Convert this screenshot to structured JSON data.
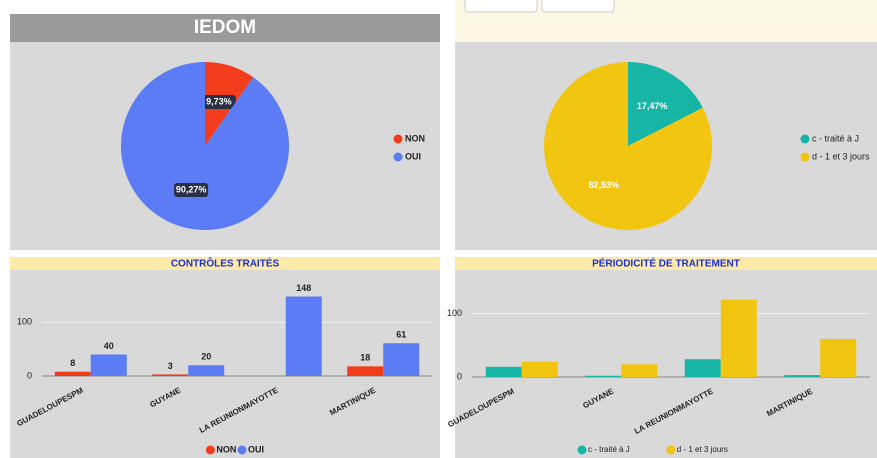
{
  "chart_data": [
    {
      "type": "pie",
      "title": "IEDOM",
      "categories": [
        "NON",
        "OUI"
      ],
      "values": [
        9.73,
        90.27
      ],
      "value_labels": [
        "9,73%",
        "90,27%"
      ],
      "colors": [
        "#f23d1c",
        "#5b7cf5"
      ],
      "legend": "right"
    },
    {
      "type": "pie",
      "categories": [
        "c - traité à J",
        "d - 1 et 3 jours"
      ],
      "values": [
        17.47,
        82.53
      ],
      "value_labels": [
        "17,47%",
        "82,53%"
      ],
      "colors": [
        "#16b5a6",
        "#f2c511"
      ],
      "legend": "right"
    },
    {
      "type": "bar",
      "title": "CONTRÔLES TRAITÉS",
      "categories": [
        "GUADELOUPESPM",
        "GUYANE",
        "LA REUNIONMAYOTTE",
        "MARTINIQUE"
      ],
      "series": [
        {
          "name": "NON",
          "color": "#f23d1c",
          "values": [
            8,
            3,
            null,
            18
          ]
        },
        {
          "name": "OUI",
          "color": "#5b7cf5",
          "values": [
            40,
            20,
            148,
            61
          ]
        }
      ],
      "ylim": [
        0,
        175
      ],
      "yticks": [
        0,
        100
      ],
      "grid": true,
      "data_labels": true,
      "legend": "bottom"
    },
    {
      "type": "bar",
      "title": "PÉRIODICITÉ DE TRAITEMENT",
      "categories": [
        "GUADELOUPESPM",
        "GUYANE",
        "LA REUNIONMAYOTTE",
        "MARTINIQUE"
      ],
      "series": [
        {
          "name": "c - traité à J",
          "color": "#16b5a6",
          "values": [
            16,
            2,
            28,
            3
          ]
        },
        {
          "name": "d - 1 et 3 jours",
          "color": "#f2c511",
          "values": [
            24,
            20,
            122,
            60
          ]
        }
      ],
      "ylim": [
        0,
        145
      ],
      "yticks": [
        0,
        100
      ],
      "grid": true,
      "data_labels": false,
      "legend": "bottom"
    }
  ]
}
